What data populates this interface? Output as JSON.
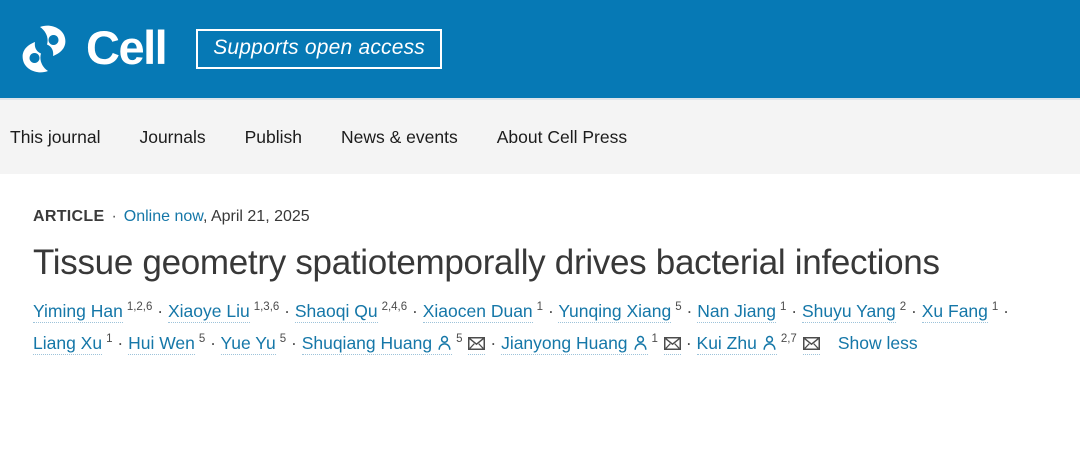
{
  "header": {
    "brand": "Cell",
    "badge_label": "Supports open access",
    "colors": {
      "header_bg": "#0679b5",
      "link_blue": "#1577a8"
    },
    "icons": {
      "brand": "cell-logo-icon"
    }
  },
  "nav": {
    "items": [
      "This journal",
      "Journals",
      "Publish",
      "News & events",
      "About Cell Press"
    ]
  },
  "article": {
    "type_label": "ARTICLE",
    "separator": "·",
    "online_link": "Online now",
    "date_text": ", April 21, 2025",
    "title": "Tissue geometry spatiotemporally drives bacterial infections",
    "author_separator": "·",
    "icons": {
      "profile": "person-icon",
      "correspondence": "envelope-icon"
    },
    "authors": [
      {
        "name": "Yiming Han",
        "sup": "1,2,6",
        "person_icon": false,
        "mail_icon": false
      },
      {
        "name": "Xiaoye Liu",
        "sup": "1,3,6",
        "person_icon": false,
        "mail_icon": false
      },
      {
        "name": "Shaoqi Qu",
        "sup": "2,4,6",
        "person_icon": false,
        "mail_icon": false
      },
      {
        "name": "Xiaocen Duan",
        "sup": "1",
        "person_icon": false,
        "mail_icon": false
      },
      {
        "name": "Yunqing Xiang",
        "sup": "5",
        "person_icon": false,
        "mail_icon": false
      },
      {
        "name": "Nan Jiang",
        "sup": "1",
        "person_icon": false,
        "mail_icon": false
      },
      {
        "name": "Shuyu Yang",
        "sup": "2",
        "person_icon": false,
        "mail_icon": false
      },
      {
        "name": "Xu Fang",
        "sup": "1",
        "person_icon": false,
        "mail_icon": false
      },
      {
        "name": "Liang Xu",
        "sup": "1",
        "person_icon": false,
        "mail_icon": false
      },
      {
        "name": "Hui Wen",
        "sup": "5",
        "person_icon": false,
        "mail_icon": false
      },
      {
        "name": "Yue Yu",
        "sup": "5",
        "person_icon": false,
        "mail_icon": false
      },
      {
        "name": "Shuqiang Huang",
        "sup": "5",
        "person_icon": true,
        "mail_icon": true
      },
      {
        "name": "Jianyong Huang",
        "sup": "1",
        "person_icon": true,
        "mail_icon": true
      },
      {
        "name": "Kui Zhu",
        "sup": "2,7",
        "person_icon": true,
        "mail_icon": true
      }
    ],
    "show_less_label": "Show less"
  }
}
